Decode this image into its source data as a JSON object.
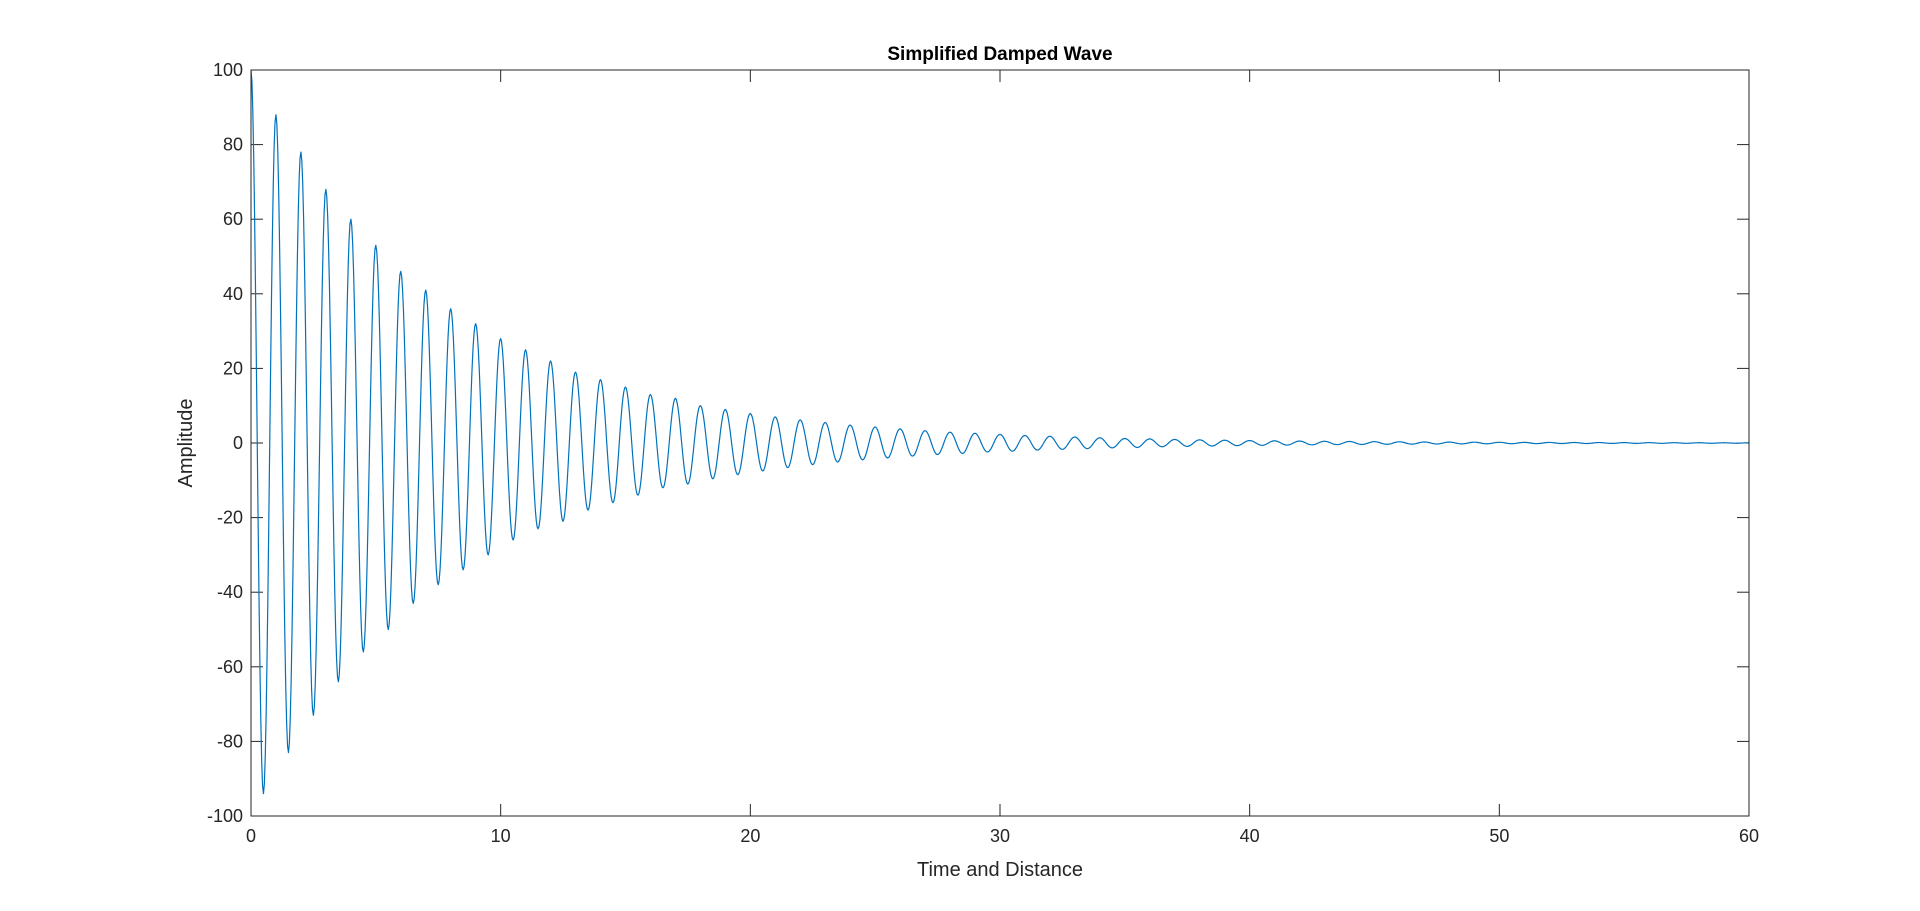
{
  "chart_data": {
    "type": "line",
    "title": "Simplified Damped Wave",
    "xlabel": "Time and Distance",
    "ylabel": "Amplitude",
    "xlim": [
      0,
      60
    ],
    "ylim": [
      -100,
      100
    ],
    "xticks": [
      0,
      10,
      20,
      30,
      40,
      50,
      60
    ],
    "yticks": [
      -100,
      -80,
      -60,
      -40,
      -20,
      0,
      20,
      40,
      60,
      80,
      100
    ],
    "grid": false,
    "legend": "none",
    "series": [
      {
        "color": "#0072BD",
        "x": [
          0,
          0.5,
          1,
          1.5,
          2,
          2.5,
          3,
          3.5,
          4,
          4.5,
          5,
          5.5,
          6,
          6.5,
          7,
          7.5,
          8,
          8.5,
          9,
          9.5,
          10,
          10.5,
          11,
          11.5,
          12,
          12.5,
          13,
          13.5,
          14,
          14.5,
          15,
          15.5,
          16,
          16.5,
          17,
          17.5,
          18,
          18.5,
          19,
          19.5,
          20,
          20.5,
          21,
          21.5,
          22,
          22.5,
          23,
          23.5,
          24,
          24.5,
          25,
          25.5,
          26,
          26.5,
          27,
          27.5,
          28,
          28.5,
          29,
          29.5,
          30,
          30.5,
          31,
          31.5,
          32,
          32.5,
          33,
          33.5,
          34,
          34.5,
          35,
          35.5,
          36,
          36.5,
          37,
          37.5,
          38,
          38.5,
          39,
          39.5,
          40,
          40.5,
          41,
          41.5,
          42,
          42.5,
          43,
          43.5,
          44,
          44.5,
          45,
          45.5,
          46,
          46.5,
          47,
          47.5,
          48,
          48.5,
          49,
          49.5,
          50,
          50.5,
          51,
          51.5,
          52,
          52.5,
          53,
          53.5,
          54,
          54.5,
          55,
          55.5,
          56,
          56.5,
          57,
          57.5,
          58,
          58.5,
          59,
          59.5,
          60
        ],
        "y": [
          100,
          -94,
          88,
          -83,
          78,
          -73,
          68,
          -64,
          60,
          -56,
          53,
          -50,
          46,
          -43,
          41,
          -38,
          36,
          -34,
          32,
          -30,
          28,
          -26,
          25,
          -23,
          22,
          -21,
          19,
          -18,
          17,
          -16,
          15,
          -14,
          13,
          -12,
          12,
          -11,
          10,
          -9.6,
          9.0,
          -8.5,
          7.9,
          -7.5,
          7.0,
          -6.6,
          6.2,
          -5.8,
          5.5,
          -5.1,
          4.8,
          -4.5,
          4.3,
          -4.0,
          3.8,
          -3.5,
          3.3,
          -3.1,
          2.9,
          -2.8,
          2.6,
          -2.4,
          2.3,
          -2.2,
          2.0,
          -1.9,
          1.8,
          -1.7,
          1.6,
          -1.5,
          1.4,
          -1.3,
          1.2,
          -1.2,
          1.1,
          -1.0,
          0.96,
          -0.9,
          0.85,
          -0.8,
          0.75,
          -0.7,
          0.66,
          -0.62,
          0.59,
          -0.55,
          0.52,
          -0.49,
          0.46,
          -0.43,
          0.41,
          -0.38,
          0.36,
          -0.34,
          0.32,
          -0.3,
          0.28,
          -0.26,
          0.25,
          -0.23,
          0.22,
          -0.21,
          0.19,
          -0.18,
          0.17,
          -0.16,
          0.15,
          -0.14,
          0.13,
          -0.13,
          0.12,
          -0.11,
          0.1,
          -0.1,
          0.09,
          -0.09,
          0.08,
          -0.08,
          0.07,
          -0.07,
          0.06,
          -0.06,
          0.06
        ]
      }
    ]
  }
}
